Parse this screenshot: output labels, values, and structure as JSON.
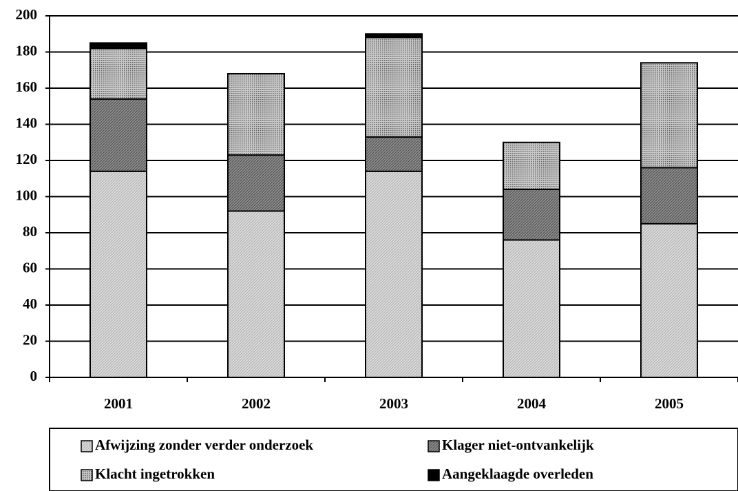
{
  "chart_data": {
    "type": "stacked_bar",
    "categories": [
      "2001",
      "2002",
      "2003",
      "2004",
      "2005"
    ],
    "series": [
      {
        "name": "Afwijzing zonder verder onderzoek",
        "color": "#d4d4d4",
        "values": [
          114,
          92,
          114,
          76,
          85
        ]
      },
      {
        "name": "Klager niet-ontvankelijk",
        "color": "#808080",
        "values": [
          40,
          31,
          19,
          28,
          31
        ]
      },
      {
        "name": "Klacht ingetrokken",
        "color": "#a8a8a8",
        "values": [
          28,
          45,
          55,
          26,
          58
        ]
      },
      {
        "name": "Aangeklaagde overleden",
        "color": "#000000",
        "values": [
          3,
          0,
          2,
          0,
          0
        ]
      }
    ],
    "ylim": [
      0,
      200
    ],
    "yticks": [
      0,
      20,
      40,
      60,
      80,
      100,
      120,
      140,
      160,
      180,
      200
    ],
    "grid": true
  }
}
